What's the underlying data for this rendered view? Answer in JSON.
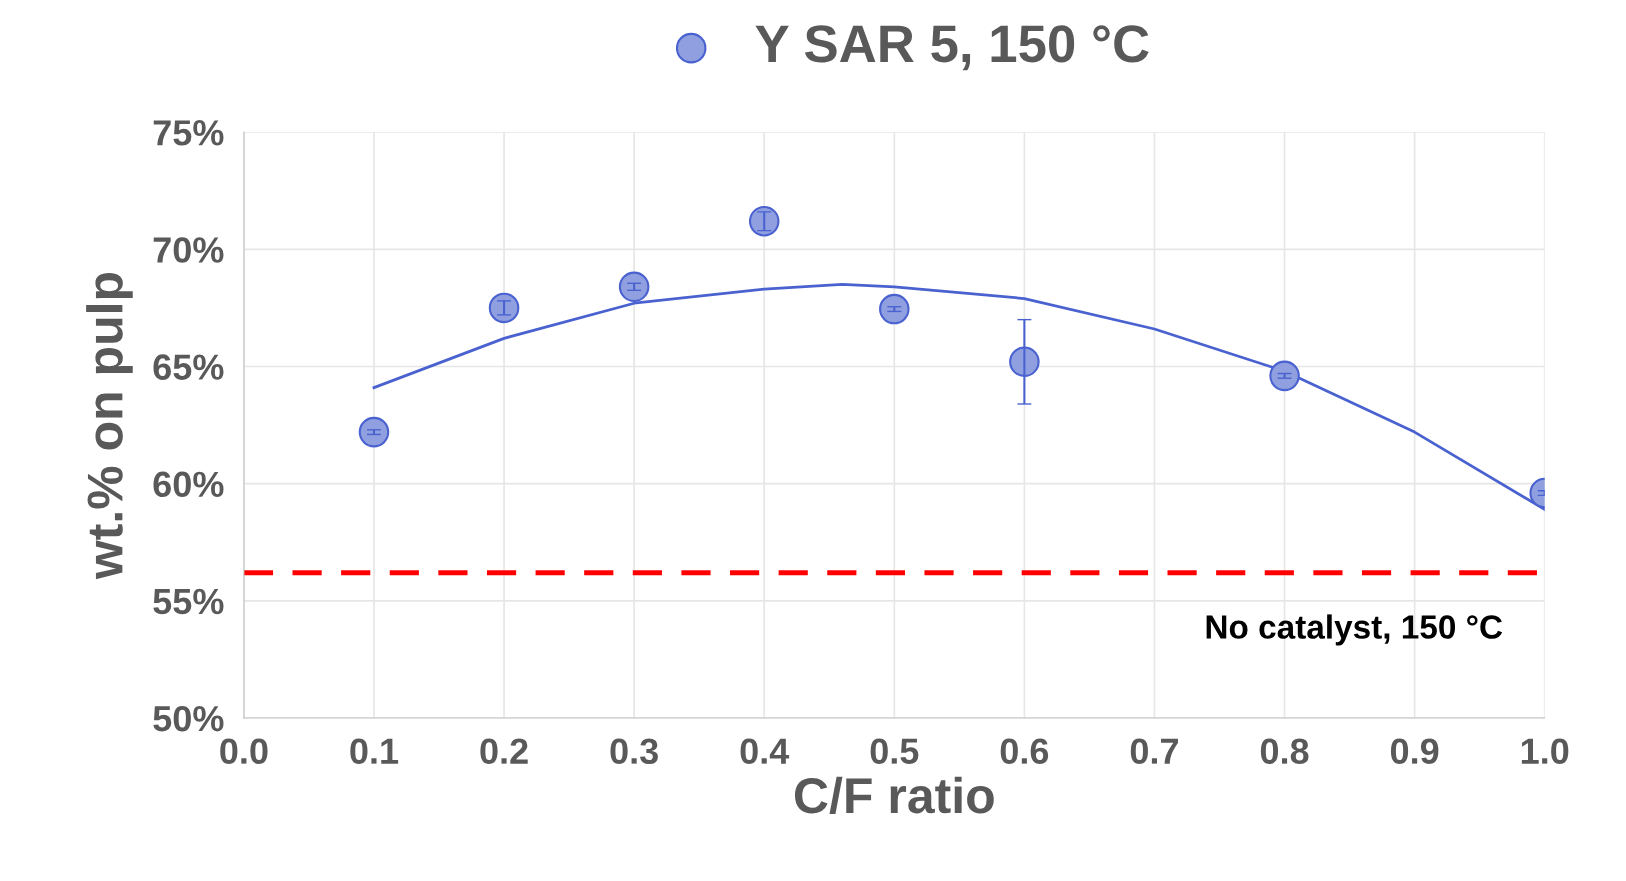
{
  "chart_data": {
    "type": "scatter",
    "xlabel": "C/F ratio",
    "ylabel": "wt.% on pulp",
    "series": [
      {
        "name": "Y SAR 5, 150 °C",
        "color": "#8f9fdf",
        "x": [
          0.1,
          0.2,
          0.3,
          0.4,
          0.5,
          0.6,
          0.8,
          1.0
        ],
        "values": [
          62.2,
          67.5,
          68.4,
          71.2,
          67.45,
          65.2,
          64.6,
          59.6
        ],
        "errors": [
          0.1,
          0.3,
          0.15,
          0.4,
          0.1,
          1.8,
          0.1,
          0.1
        ],
        "marker": "circle"
      },
      {
        "type": "line",
        "color": "#4a62d0",
        "x": [
          0.1,
          0.2,
          0.3,
          0.4,
          0.46,
          0.5,
          0.6,
          0.7,
          0.8,
          0.9,
          1.0
        ],
        "values": [
          64.1,
          66.2,
          67.7,
          68.3,
          68.5,
          68.4,
          67.9,
          66.6,
          64.8,
          62.2,
          58.9
        ],
        "marker": "none"
      }
    ],
    "xlim": [
      0,
      1
    ],
    "xticks": [
      {
        "value": 0,
        "label": "0.0"
      },
      0.1,
      0.2,
      0.3,
      0.4,
      0.5,
      0.6,
      0.7,
      0.8,
      0.9,
      {
        "value": 1,
        "label": "1.0"
      }
    ],
    "ylim": [
      50,
      75
    ],
    "yticks": [
      {
        "value": 50,
        "label": "50%"
      },
      {
        "value": 55,
        "label": "55%"
      },
      {
        "value": 60,
        "label": "60%"
      },
      {
        "value": 65,
        "label": "65%"
      },
      {
        "value": 70,
        "label": "70%"
      },
      {
        "value": 75,
        "label": "75%"
      }
    ],
    "ref_lines": [
      {
        "axis": "y",
        "value": 56.2,
        "label": "No catalyst, 150 °C",
        "color": "#ff0000",
        "line_style": "dashed"
      }
    ],
    "grid": true,
    "legend": "top"
  }
}
